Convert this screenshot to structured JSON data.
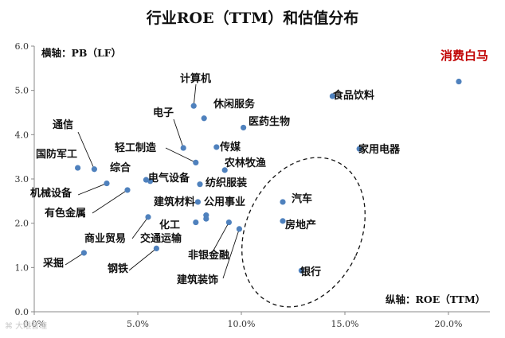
{
  "chart_data": {
    "type": "scatter",
    "title": "行业ROE（TTM）和估值分布",
    "x_axis_note": "纵轴：ROE（TTM）",
    "y_axis_note": "横轴：PB（LF）",
    "xlim": [
      0,
      0.22
    ],
    "ylim": [
      0,
      6
    ],
    "x_ticks": [
      0,
      0.05,
      0.1,
      0.15,
      0.2
    ],
    "x_tick_labels": [
      "0.0%",
      "5.0%",
      "10.0%",
      "15.0%",
      "20.0%"
    ],
    "y_ticks": [
      0,
      1,
      2,
      3,
      4,
      5,
      6
    ],
    "y_tick_labels": [
      "0.0",
      "1.0",
      "2.0",
      "3.0",
      "4.0",
      "5.0",
      "6.0"
    ],
    "grid": false,
    "point_color": "#4f81bd",
    "highlight_color": "#c00000",
    "points": [
      {
        "label": "消费白马",
        "x": 0.205,
        "y": 5.2,
        "highlight": true
      },
      {
        "label": "食品饮料",
        "x": 0.144,
        "y": 4.87
      },
      {
        "label": "家用电器",
        "x": 0.157,
        "y": 3.68
      },
      {
        "label": "计算机",
        "x": 0.077,
        "y": 4.65
      },
      {
        "label": "休闲服务",
        "x": 0.082,
        "y": 4.37
      },
      {
        "label": "医药生物",
        "x": 0.101,
        "y": 4.16
      },
      {
        "label": "电子",
        "x": 0.072,
        "y": 3.7
      },
      {
        "label": "传媒",
        "x": 0.088,
        "y": 3.72
      },
      {
        "label": "通信",
        "x": 0.029,
        "y": 3.22
      },
      {
        "label": "国防军工",
        "x": 0.021,
        "y": 3.25
      },
      {
        "label": "轻工制造",
        "x": 0.078,
        "y": 3.37
      },
      {
        "label": "农林牧渔",
        "x": 0.092,
        "y": 3.2
      },
      {
        "label": "综合",
        "x": 0.054,
        "y": 2.98
      },
      {
        "label": "电气设备",
        "x": 0.056,
        "y": 2.95
      },
      {
        "label": "纺织服装",
        "x": 0.08,
        "y": 2.88
      },
      {
        "label": "机械设备",
        "x": 0.035,
        "y": 2.9
      },
      {
        "label": "有色金属",
        "x": 0.045,
        "y": 2.75
      },
      {
        "label": "建筑材料",
        "x": 0.079,
        "y": 2.48
      },
      {
        "label": "公用事业",
        "x": 0.083,
        "y": 2.18
      },
      {
        "label": "汽车",
        "x": 0.12,
        "y": 2.48
      },
      {
        "label": "商业贸易",
        "x": 0.055,
        "y": 2.14
      },
      {
        "label": "交通运输",
        "x": 0.083,
        "y": 2.1
      },
      {
        "label": "化工",
        "x": 0.078,
        "y": 2.02
      },
      {
        "label": "房地产",
        "x": 0.12,
        "y": 2.05
      },
      {
        "label": "非银金融",
        "x": 0.094,
        "y": 2.02
      },
      {
        "label": "建筑装饰",
        "x": 0.099,
        "y": 1.87
      },
      {
        "label": "钢铁",
        "x": 0.059,
        "y": 1.43
      },
      {
        "label": "采掘",
        "x": 0.024,
        "y": 1.33
      },
      {
        "label": "银行",
        "x": 0.129,
        "y": 0.93
      }
    ],
    "annotation": "dashed ellipse around 汽车, 房地产, 银行"
  },
  "watermark": "⌘ 大眼智瞳"
}
